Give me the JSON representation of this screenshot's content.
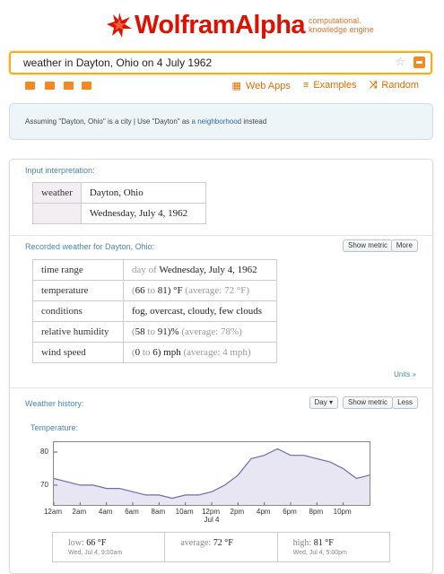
{
  "app": {
    "brand_part1": "Wolfram",
    "brand_part2": "Alpha",
    "tagline_1": "computational.",
    "tagline_2": "knowledge engine"
  },
  "search": {
    "value": "weather in Dayton, Ohio on 4 July 1962"
  },
  "toolbar": {
    "icons": [
      "keyboard-icon",
      "camera-icon",
      "table-icon",
      "puzzle-icon"
    ],
    "links": [
      {
        "glyph": "▦",
        "label": "Web Apps"
      },
      {
        "glyph": "≡",
        "label": "Examples"
      },
      {
        "glyph": "⤨",
        "label": "Random"
      }
    ]
  },
  "assumption": {
    "prefix": "Assuming \"Dayton, Ohio\" is a city | Use \"Dayton\" as ",
    "link": "a neighborhood",
    "suffix": " instead"
  },
  "input_interpretation": {
    "title": "Input interpretation:",
    "label": "weather",
    "place": "Dayton, Ohio",
    "date": "Wednesday, July 4, 1962"
  },
  "recorded": {
    "title": "Recorded weather for Dayton, Ohio:",
    "show_metric": "Show metric",
    "more": "More",
    "units_link": "Units »",
    "rows": [
      {
        "label": "time range",
        "pre": "day of ",
        "value": "Wednesday, July 4, 1962",
        "post": ""
      },
      {
        "label": "temperature",
        "pre": "(",
        "a": "66",
        "mid": " to ",
        "b": "81",
        "post": ") °F",
        "avg": " (average: 72 °F)"
      },
      {
        "label": "conditions",
        "value": "fog, overcast, cloudy, few clouds"
      },
      {
        "label": "relative humidity",
        "pre": "(",
        "a": "58",
        "mid": " to ",
        "b": "91",
        "post": ")%",
        "avg": " (average: 78%)"
      },
      {
        "label": "wind speed",
        "pre": "(",
        "a": "0",
        "mid": " to ",
        "b": "6",
        "post": ") mph",
        "avg": " (average: 4 mph)"
      }
    ]
  },
  "history": {
    "title": "Weather history:",
    "day_select": "Day ▾",
    "show_metric": "Show metric",
    "less": "Less",
    "sub_title": "Temperature:",
    "summary": {
      "low_label": "low: ",
      "low_val": "66 °F",
      "low_sub": "Wed, Jul 4, 9:00am",
      "avg_label": "average: ",
      "avg_val": "72 °F",
      "high_label": "high: ",
      "high_val": "81 °F",
      "high_sub": "Wed, Jul 4, 5:00pm"
    }
  },
  "chart_data": {
    "type": "area",
    "title": "Temperature:",
    "x_tick_labels": [
      "12am",
      "2am",
      "4am",
      "6am",
      "8am",
      "10am",
      "12pm",
      "2pm",
      "4pm",
      "6pm",
      "8pm",
      "10pm"
    ],
    "x_sub_label": "Jul 4",
    "y_ticks": [
      70,
      80
    ],
    "ylim": [
      64,
      83
    ],
    "series": [
      {
        "x_hours": [
          0,
          1,
          2,
          3,
          4,
          5,
          6,
          7,
          8,
          9,
          10,
          11,
          12,
          13,
          14,
          15,
          16,
          17,
          18,
          19,
          20,
          21,
          22,
          23,
          24
        ],
        "values": [
          72,
          71,
          70,
          70,
          69,
          69,
          68,
          67,
          67,
          66,
          67,
          67,
          68,
          70,
          73,
          78,
          79,
          81,
          79,
          79,
          78,
          77,
          75,
          72,
          73
        ]
      }
    ],
    "fill_color": "#e9e6f4",
    "line_color": "#6a6ca8",
    "grid": false
  }
}
